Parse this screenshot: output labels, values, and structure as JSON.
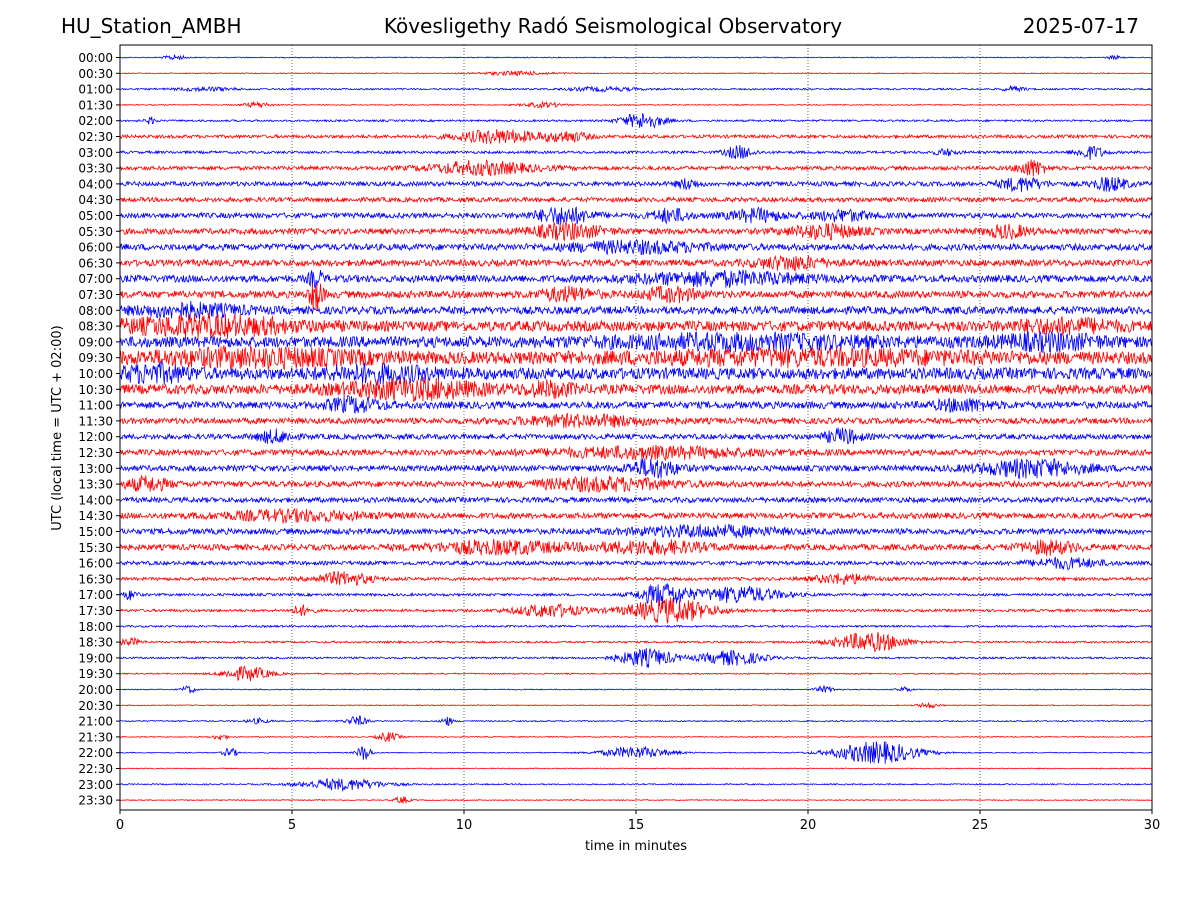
{
  "header": {
    "station": "HU_Station_AMBH",
    "observatory": "Kövesligethy Radó Seismological Observatory",
    "date": "2025-07-17"
  },
  "chart_data": {
    "type": "line",
    "title": "Kövesligethy Radó Seismological Observatory",
    "xlabel": "time in minutes",
    "ylabel": "UTC (local time = UTC + 02:00)",
    "xlim": [
      0,
      30
    ],
    "x_ticks": [
      "0",
      "5",
      "10",
      "15",
      "20",
      "25",
      "30"
    ],
    "grid": "vertical dotted lines at 5, 10, 15, 20, 25",
    "colors": {
      "even_rows": "#0000ff",
      "odd_rows": "#ff0000"
    },
    "rows": [
      {
        "label": "00:00",
        "noise": 0.15,
        "events": [
          [
            1.6,
            0.3,
            0.8
          ],
          [
            28.9,
            0.2,
            0.6
          ]
        ]
      },
      {
        "label": "00:30",
        "noise": 0.15,
        "events": [
          [
            11.5,
            1.0,
            0.6
          ]
        ]
      },
      {
        "label": "01:00",
        "noise": 0.25,
        "events": [
          [
            2.5,
            0.8,
            0.6
          ],
          [
            14.0,
            1.0,
            0.6
          ],
          [
            26.0,
            0.3,
            0.8
          ]
        ]
      },
      {
        "label": "01:30",
        "noise": 0.15,
        "events": [
          [
            4.0,
            0.4,
            0.8
          ],
          [
            12.3,
            0.6,
            0.8
          ]
        ]
      },
      {
        "label": "02:00",
        "noise": 0.3,
        "events": [
          [
            15.2,
            0.6,
            2.5
          ],
          [
            0.9,
            0.15,
            1.0
          ]
        ]
      },
      {
        "label": "02:30",
        "noise": 0.5,
        "events": [
          [
            11.0,
            1.2,
            2.0
          ],
          [
            13.0,
            0.6,
            1.5
          ]
        ]
      },
      {
        "label": "03:00",
        "noise": 0.4,
        "events": [
          [
            18.0,
            0.4,
            2.0
          ],
          [
            28.2,
            0.4,
            2.0
          ],
          [
            24.0,
            0.3,
            1.0
          ]
        ]
      },
      {
        "label": "03:30",
        "noise": 0.6,
        "events": [
          [
            10.5,
            1.5,
            2.0
          ],
          [
            26.5,
            0.4,
            2.5
          ]
        ]
      },
      {
        "label": "04:00",
        "noise": 0.7,
        "events": [
          [
            26.2,
            0.6,
            2.0
          ],
          [
            28.8,
            0.5,
            2.0
          ],
          [
            16.5,
            0.3,
            1.5
          ]
        ]
      },
      {
        "label": "04:30",
        "noise": 0.7,
        "events": []
      },
      {
        "label": "05:00",
        "noise": 0.8,
        "events": [
          [
            12.9,
            0.8,
            2.5
          ],
          [
            16.0,
            0.5,
            2.0
          ],
          [
            18.5,
            0.8,
            1.8
          ],
          [
            21.0,
            0.8,
            1.5
          ]
        ]
      },
      {
        "label": "05:30",
        "noise": 0.9,
        "events": [
          [
            13.0,
            1.0,
            2.2
          ],
          [
            20.5,
            1.0,
            2.0
          ],
          [
            25.8,
            0.6,
            1.8
          ]
        ]
      },
      {
        "label": "06:00",
        "noise": 1.0,
        "events": [
          [
            15.0,
            2.0,
            1.5
          ]
        ]
      },
      {
        "label": "06:30",
        "noise": 1.0,
        "events": [
          [
            19.5,
            1.0,
            1.8
          ]
        ]
      },
      {
        "label": "07:00",
        "noise": 1.1,
        "events": [
          [
            17.5,
            2.5,
            1.8
          ],
          [
            5.7,
            0.2,
            2.5
          ]
        ]
      },
      {
        "label": "07:30",
        "noise": 1.1,
        "events": [
          [
            5.7,
            0.2,
            4.5
          ],
          [
            13.0,
            0.8,
            1.8
          ],
          [
            16.0,
            0.8,
            1.8
          ]
        ]
      },
      {
        "label": "08:00",
        "noise": 1.2,
        "events": [
          [
            2.0,
            1.5,
            1.8
          ]
        ]
      },
      {
        "label": "08:30",
        "noise": 1.6,
        "events": [
          [
            2.5,
            2.5,
            2.5
          ],
          [
            27.5,
            1.5,
            1.6
          ]
        ]
      },
      {
        "label": "09:00",
        "noise": 1.7,
        "events": [
          [
            18.0,
            4.0,
            1.6
          ],
          [
            27.0,
            1.5,
            1.8
          ]
        ]
      },
      {
        "label": "09:30",
        "noise": 1.9,
        "events": [
          [
            4.0,
            3.0,
            2.0
          ],
          [
            20.0,
            5.0,
            1.5
          ]
        ]
      },
      {
        "label": "10:00",
        "noise": 1.8,
        "events": [
          [
            1.0,
            1.0,
            2.0
          ],
          [
            7.5,
            1.5,
            1.8
          ]
        ]
      },
      {
        "label": "10:30",
        "noise": 1.5,
        "events": [
          [
            8.5,
            2.0,
            2.5
          ],
          [
            12.5,
            0.7,
            1.8
          ]
        ]
      },
      {
        "label": "11:00",
        "noise": 1.1,
        "events": [
          [
            6.8,
            0.8,
            2.0
          ],
          [
            24.5,
            0.8,
            1.6
          ]
        ]
      },
      {
        "label": "11:30",
        "noise": 0.9,
        "events": [
          [
            13.5,
            2.0,
            1.5
          ]
        ]
      },
      {
        "label": "12:00",
        "noise": 0.8,
        "events": [
          [
            21.0,
            0.5,
            2.2
          ],
          [
            4.5,
            0.5,
            1.8
          ]
        ]
      },
      {
        "label": "12:30",
        "noise": 0.9,
        "events": [
          [
            15.5,
            3.0,
            1.5
          ]
        ]
      },
      {
        "label": "13:00",
        "noise": 0.9,
        "events": [
          [
            15.5,
            0.7,
            2.8
          ],
          [
            26.5,
            1.5,
            2.5
          ]
        ]
      },
      {
        "label": "13:30",
        "noise": 0.9,
        "events": [
          [
            0.8,
            0.6,
            2.0
          ],
          [
            14.0,
            2.0,
            1.8
          ]
        ]
      },
      {
        "label": "14:00",
        "noise": 0.8,
        "events": []
      },
      {
        "label": "14:30",
        "noise": 0.9,
        "events": [
          [
            5.0,
            2.0,
            1.4
          ]
        ]
      },
      {
        "label": "15:00",
        "noise": 0.9,
        "events": [
          [
            17.0,
            2.0,
            1.5
          ]
        ]
      },
      {
        "label": "15:30",
        "noise": 0.9,
        "events": [
          [
            11.0,
            2.0,
            1.8
          ],
          [
            15.5,
            1.5,
            1.8
          ],
          [
            27.0,
            0.8,
            1.8
          ]
        ]
      },
      {
        "label": "16:00",
        "noise": 0.6,
        "events": [
          [
            27.5,
            1.0,
            1.5
          ]
        ]
      },
      {
        "label": "16:30",
        "noise": 0.5,
        "events": [
          [
            6.5,
            0.8,
            2.0
          ],
          [
            21.0,
            0.8,
            1.5
          ]
        ]
      },
      {
        "label": "17:00",
        "noise": 0.4,
        "events": [
          [
            15.8,
            0.7,
            3.5
          ],
          [
            18.0,
            1.2,
            2.5
          ],
          [
            0.3,
            0.2,
            1.5
          ]
        ]
      },
      {
        "label": "17:30",
        "noise": 0.4,
        "events": [
          [
            16.0,
            1.2,
            3.8
          ],
          [
            12.5,
            1.0,
            2.0
          ],
          [
            5.3,
            0.3,
            1.5
          ]
        ]
      },
      {
        "label": "18:00",
        "noise": 0.3,
        "events": []
      },
      {
        "label": "18:30",
        "noise": 0.3,
        "events": [
          [
            21.8,
            1.0,
            3.0
          ],
          [
            0.3,
            0.3,
            1.2
          ]
        ]
      },
      {
        "label": "19:00",
        "noise": 0.3,
        "events": [
          [
            15.3,
            0.8,
            2.8
          ],
          [
            17.8,
            0.9,
            2.2
          ]
        ]
      },
      {
        "label": "19:30",
        "noise": 0.2,
        "events": [
          [
            3.7,
            0.7,
            2.2
          ]
        ]
      },
      {
        "label": "20:00",
        "noise": 0.15,
        "events": [
          [
            2.0,
            0.2,
            1.2
          ],
          [
            20.5,
            0.3,
            1.0
          ],
          [
            22.8,
            0.2,
            0.8
          ]
        ]
      },
      {
        "label": "20:30",
        "noise": 0.15,
        "events": [
          [
            23.5,
            0.3,
            0.8
          ]
        ]
      },
      {
        "label": "21:00",
        "noise": 0.2,
        "events": [
          [
            6.9,
            0.3,
            1.5
          ],
          [
            9.5,
            0.15,
            1.5
          ],
          [
            4.0,
            0.3,
            0.8
          ]
        ]
      },
      {
        "label": "21:30",
        "noise": 0.15,
        "events": [
          [
            7.8,
            0.3,
            1.5
          ],
          [
            2.9,
            0.2,
            1.0
          ]
        ]
      },
      {
        "label": "22:00",
        "noise": 0.15,
        "events": [
          [
            7.1,
            0.2,
            2.5
          ],
          [
            15.0,
            1.0,
            1.8
          ],
          [
            22.0,
            1.2,
            3.5
          ],
          [
            3.2,
            0.2,
            1.5
          ]
        ]
      },
      {
        "label": "22:30",
        "noise": 0.15,
        "events": []
      },
      {
        "label": "23:00",
        "noise": 0.2,
        "events": [
          [
            6.5,
            1.2,
            1.8
          ]
        ]
      },
      {
        "label": "23:30",
        "noise": 0.15,
        "events": [
          [
            8.2,
            0.2,
            1.2
          ]
        ]
      }
    ]
  }
}
